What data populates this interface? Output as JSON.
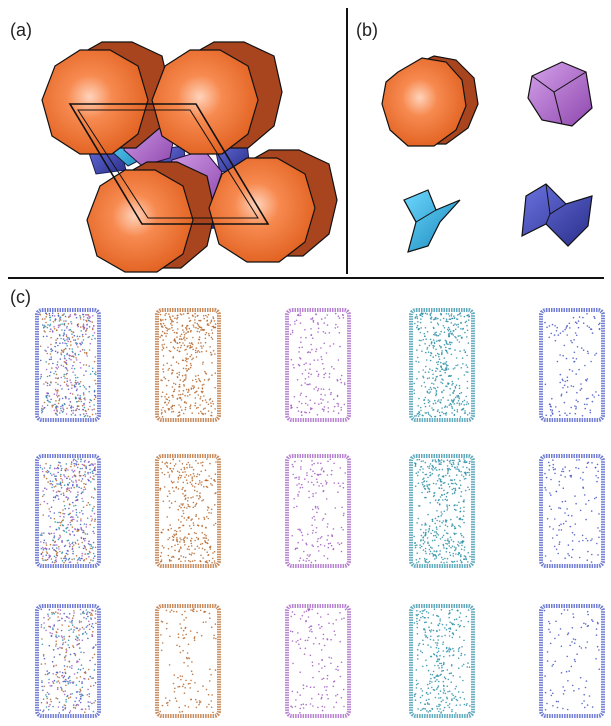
{
  "panels": {
    "a": {
      "label": "(a)"
    },
    "b": {
      "label": "(b)"
    },
    "c": {
      "label": "(c)"
    }
  },
  "colors": {
    "orange": "#f4773a",
    "orange_dark": "#a8451f",
    "violet": "#b06ad0",
    "violet_dark": "#7a3c98",
    "cyan": "#2ab3e3",
    "blue": "#3d45b8",
    "brown_points": "#b5662a",
    "teal_points": "#2d8fa8",
    "purple_points": "#a05ac0",
    "navy_points": "#4353c4"
  },
  "grid": {
    "rows": 3,
    "columns": [
      "multi",
      "brown",
      "purple",
      "teal",
      "navy"
    ]
  }
}
